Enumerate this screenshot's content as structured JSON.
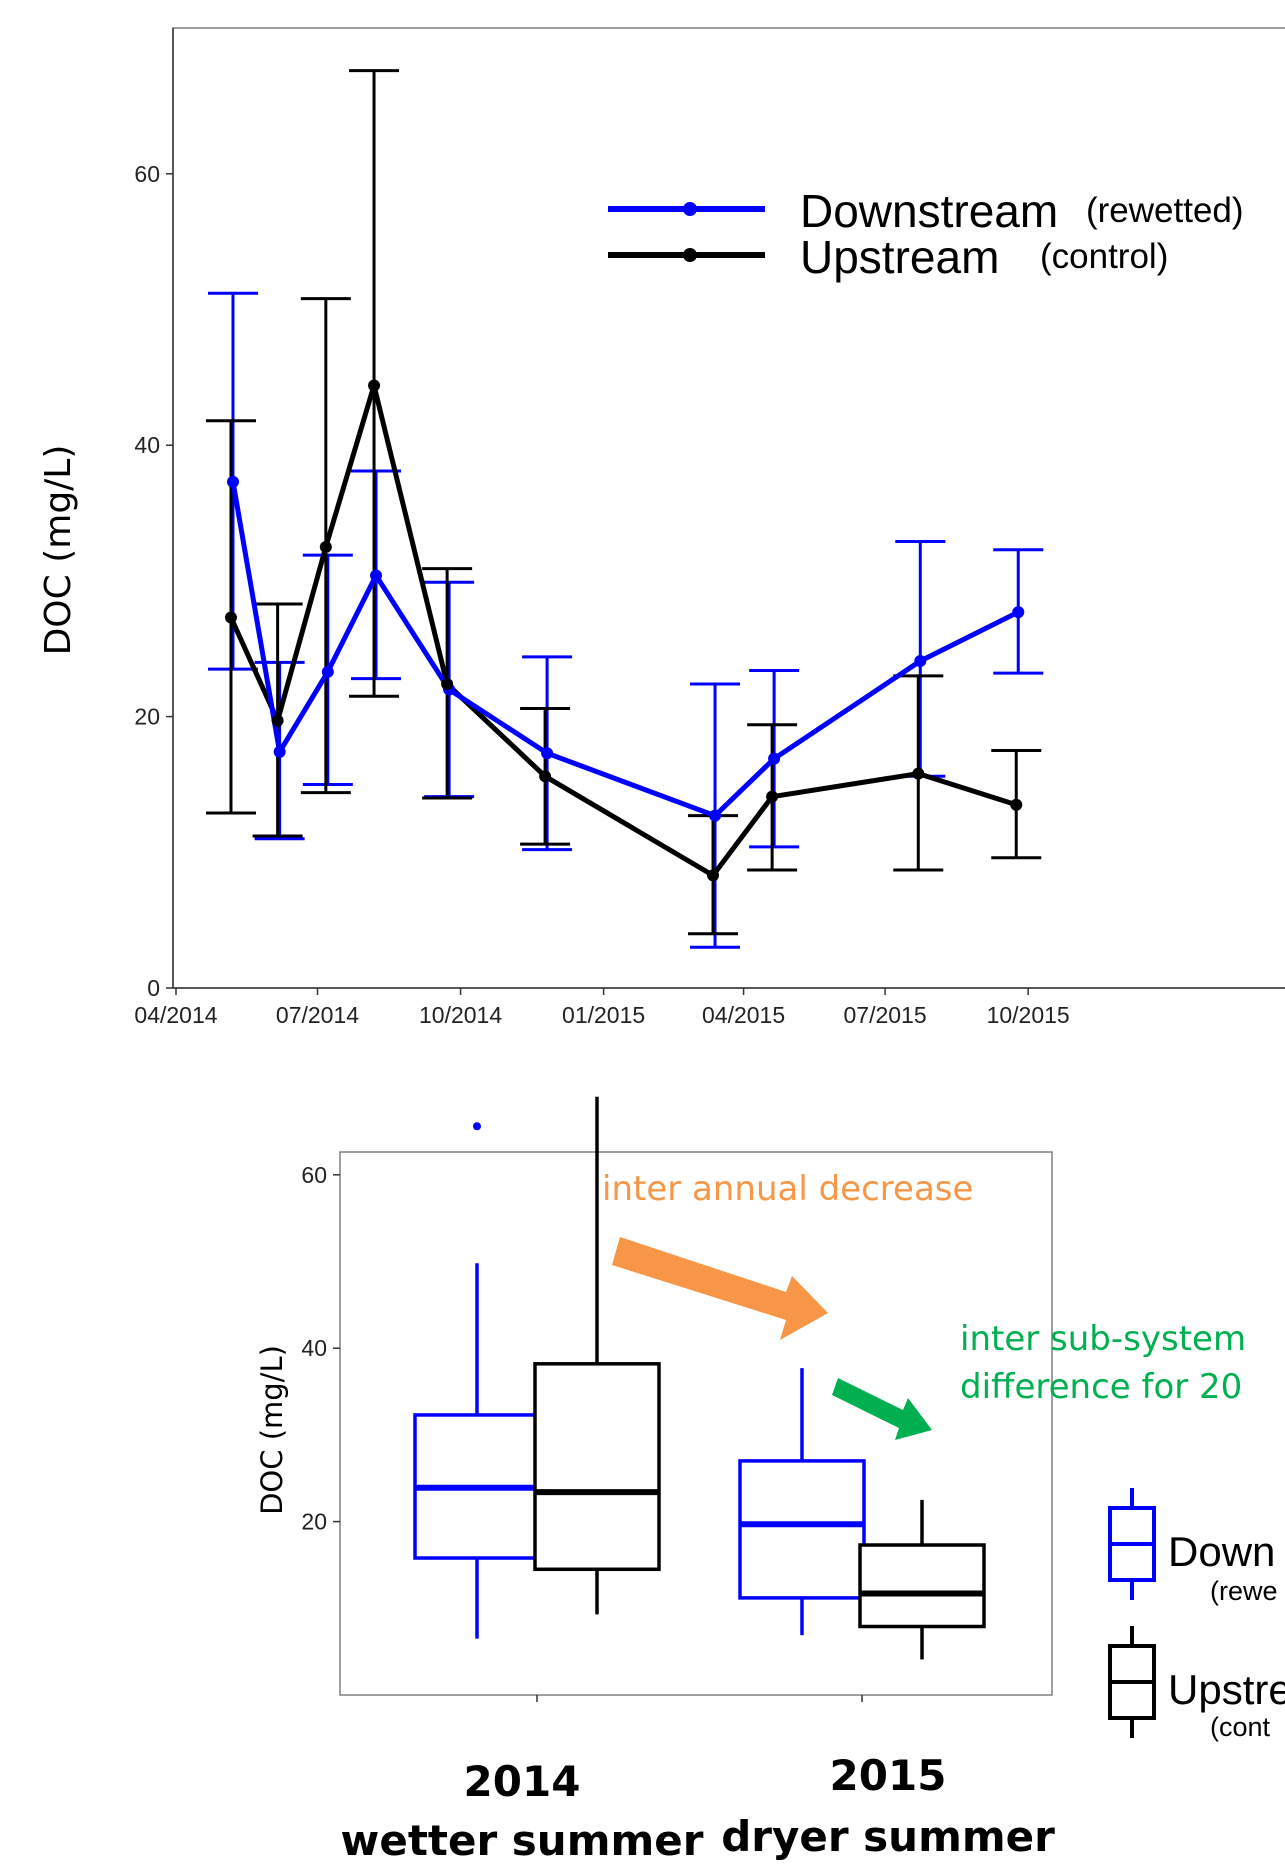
{
  "chart_data": [
    {
      "type": "line",
      "ylabel": "DOC (mg/L)",
      "ylim": [
        0,
        70
      ],
      "yticks": [
        "0",
        "20",
        "40",
        "60"
      ],
      "xticks": [
        "04/2014",
        "07/2014",
        "10/2014",
        "01/2015",
        "04/2015",
        "07/2015",
        "10/2015"
      ],
      "legend": {
        "position": "top-right",
        "entries": [
          {
            "label": "Downstream",
            "sublabel": "(rewetted)"
          },
          {
            "label": "Upstream",
            "sublabel": "(control)"
          }
        ]
      },
      "x": [
        "2014-05-07",
        "2014-06-06",
        "2014-07-07",
        "2014-08-07",
        "2014-09-23",
        "2014-11-25",
        "2015-03-13",
        "2015-04-20",
        "2015-07-23",
        "2015-09-24"
      ],
      "series": [
        {
          "name": "Downstream",
          "color": "#0000ff",
          "values": [
            37.3,
            17.4,
            23.3,
            30.4,
            22.0,
            17.3,
            12.7,
            16.9,
            24.1,
            27.7
          ],
          "err_low": [
            23.5,
            11.0,
            15.0,
            22.8,
            14.1,
            10.2,
            3.0,
            10.4,
            15.6,
            23.2
          ],
          "err_high": [
            51.2,
            24.0,
            31.9,
            38.1,
            29.9,
            24.4,
            22.4,
            23.4,
            32.9,
            32.3
          ]
        },
        {
          "name": "Upstream",
          "color": "#000000",
          "values": [
            27.3,
            19.7,
            32.5,
            44.4,
            22.4,
            15.6,
            8.3,
            14.1,
            15.8,
            13.5
          ],
          "err_low": [
            12.9,
            11.2,
            14.4,
            21.5,
            14.0,
            10.6,
            4.0,
            8.7,
            8.7,
            9.6
          ],
          "err_high": [
            41.8,
            28.3,
            50.8,
            67.6,
            30.9,
            20.6,
            12.7,
            19.4,
            23.0,
            17.5
          ]
        }
      ]
    },
    {
      "type": "box",
      "ylabel": "DOC (mg/L)",
      "ylim": [
        0,
        69
      ],
      "yticks": [
        "20",
        "40",
        "60"
      ],
      "categories": [
        "2014",
        "2015"
      ],
      "category_notes": [
        "wetter summer",
        "dryer summer"
      ],
      "series": [
        {
          "name": "Downstream",
          "sublabel": "(rewetted)",
          "color": "#0000ff",
          "boxes": [
            {
              "min": 6.5,
              "q1": 15.8,
              "median": 23.9,
              "q3": 32.3,
              "max": 49.8,
              "outliers": [
                65.6
              ]
            },
            {
              "min": 6.9,
              "q1": 11.2,
              "median": 19.7,
              "q3": 27.0,
              "max": 37.7,
              "outliers": []
            }
          ]
        },
        {
          "name": "Upstream",
          "sublabel": "(control)",
          "color": "#000000",
          "boxes": [
            {
              "min": 9.3,
              "q1": 14.5,
              "median": 23.4,
              "q3": 38.2,
              "max": 69.0,
              "outliers": []
            },
            {
              "min": 4.1,
              "q1": 7.9,
              "median": 11.7,
              "q3": 17.3,
              "max": 22.5,
              "outliers": []
            }
          ]
        }
      ],
      "annotations": {
        "interannual": "inter annual decrease",
        "subsystem_line1": "inter sub-system",
        "subsystem_line2": "difference for 20",
        "annotation_colors": {
          "interannual": "#f79646",
          "subsystem": "#00b050"
        }
      },
      "legend": {
        "position": "right",
        "entries": [
          {
            "label": "Down",
            "sublabel": "(rewe"
          },
          {
            "label": "Upstre",
            "sublabel": "(cont"
          }
        ]
      }
    }
  ]
}
